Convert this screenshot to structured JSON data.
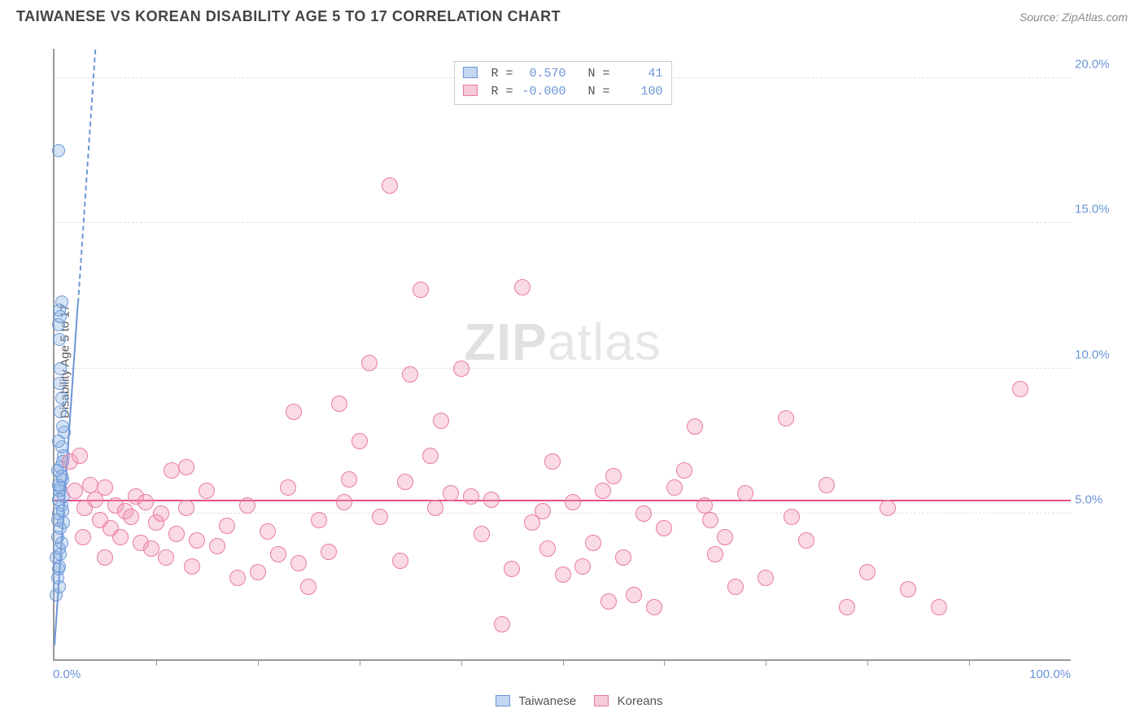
{
  "header": {
    "title": "TAIWANESE VS KOREAN DISABILITY AGE 5 TO 17 CORRELATION CHART",
    "source": "Source: ZipAtlas.com"
  },
  "chart": {
    "type": "scatter",
    "ylabel": "Disability Age 5 to 17",
    "xlim": [
      0,
      100
    ],
    "ylim": [
      0,
      21
    ],
    "x_ticks_minor": [
      10,
      20,
      30,
      40,
      50,
      60,
      70,
      80,
      90
    ],
    "x_tick_labels": [
      {
        "pos": 0,
        "text": "0.0%"
      },
      {
        "pos": 100,
        "text": "100.0%"
      }
    ],
    "y_grid": [
      {
        "y": 5,
        "label": "5.0%"
      },
      {
        "y": 10,
        "label": "10.0%"
      },
      {
        "y": 15,
        "label": "15.0%"
      },
      {
        "y": 20,
        "label": "20.0%"
      }
    ],
    "background_color": "#ffffff",
    "grid_color": "#dddddd",
    "axis_color": "#999999",
    "label_color": "#6b95d6",
    "watermark": "ZIPatlas",
    "series": [
      {
        "name": "Taiwanese",
        "fill": "rgba(135,175,225,0.35)",
        "stroke": "#6b95d6",
        "marker_radius": 8,
        "r_value": "0.570",
        "n_value": "41",
        "trend": {
          "x1": 0,
          "y1": 0.5,
          "x2": 4.0,
          "y2": 21,
          "color": "#6b95d6",
          "solid_until_x": 2.3
        },
        "points": [
          [
            0.2,
            2.2
          ],
          [
            0.3,
            2.8
          ],
          [
            0.4,
            3.1
          ],
          [
            0.2,
            3.5
          ],
          [
            0.5,
            3.8
          ],
          [
            0.3,
            4.2
          ],
          [
            0.6,
            4.5
          ],
          [
            0.4,
            5.0
          ],
          [
            0.7,
            5.3
          ],
          [
            0.5,
            5.8
          ],
          [
            0.8,
            6.2
          ],
          [
            0.6,
            6.6
          ],
          [
            0.9,
            7.0
          ],
          [
            0.7,
            7.3
          ],
          [
            1.0,
            7.8
          ],
          [
            0.8,
            8.0
          ],
          [
            0.5,
            9.5
          ],
          [
            0.6,
            10.0
          ],
          [
            0.4,
            11.5
          ],
          [
            0.5,
            12.0
          ],
          [
            0.7,
            12.3
          ],
          [
            0.3,
            4.8
          ],
          [
            0.4,
            5.5
          ],
          [
            0.6,
            5.9
          ],
          [
            0.8,
            6.8
          ],
          [
            0.5,
            3.2
          ],
          [
            0.7,
            4.0
          ],
          [
            0.9,
            4.7
          ],
          [
            0.3,
            6.5
          ],
          [
            0.4,
            7.5
          ],
          [
            0.6,
            3.6
          ],
          [
            0.5,
            2.5
          ],
          [
            0.8,
            5.1
          ],
          [
            0.9,
            5.6
          ],
          [
            0.4,
            6.0
          ],
          [
            0.6,
            8.5
          ],
          [
            0.7,
            9.0
          ],
          [
            0.5,
            11.0
          ],
          [
            0.6,
            11.8
          ],
          [
            0.4,
            17.5
          ],
          [
            0.7,
            6.3
          ]
        ]
      },
      {
        "name": "Koreans",
        "fill": "rgba(240,150,180,0.35)",
        "stroke": "#e87ba5",
        "marker_radius": 10,
        "r_value": "-0.000",
        "n_value": "100",
        "trend": {
          "x1": 0,
          "y1": 5.5,
          "x2": 100,
          "y2": 5.5,
          "color": "#e84b8a",
          "solid_until_x": 100
        },
        "points": [
          [
            1.5,
            6.8
          ],
          [
            2.0,
            5.8
          ],
          [
            2.5,
            7.0
          ],
          [
            3.0,
            5.2
          ],
          [
            3.5,
            6.0
          ],
          [
            4.0,
            5.5
          ],
          [
            4.5,
            4.8
          ],
          [
            5.0,
            5.9
          ],
          [
            5.5,
            4.5
          ],
          [
            6.0,
            5.3
          ],
          [
            6.5,
            4.2
          ],
          [
            7.0,
            5.1
          ],
          [
            7.5,
            4.9
          ],
          [
            8.0,
            5.6
          ],
          [
            8.5,
            4.0
          ],
          [
            9.0,
            5.4
          ],
          [
            9.5,
            3.8
          ],
          [
            10.0,
            4.7
          ],
          [
            10.5,
            5.0
          ],
          [
            11.0,
            3.5
          ],
          [
            11.5,
            6.5
          ],
          [
            12.0,
            4.3
          ],
          [
            13.0,
            5.2
          ],
          [
            13.5,
            3.2
          ],
          [
            14.0,
            4.1
          ],
          [
            15.0,
            5.8
          ],
          [
            16.0,
            3.9
          ],
          [
            17.0,
            4.6
          ],
          [
            18.0,
            2.8
          ],
          [
            19.0,
            5.3
          ],
          [
            20.0,
            3.0
          ],
          [
            21.0,
            4.4
          ],
          [
            22.0,
            3.6
          ],
          [
            23.0,
            5.9
          ],
          [
            24.0,
            3.3
          ],
          [
            25.0,
            2.5
          ],
          [
            26.0,
            4.8
          ],
          [
            27.0,
            3.7
          ],
          [
            28.0,
            8.8
          ],
          [
            29.0,
            6.2
          ],
          [
            30.0,
            7.5
          ],
          [
            31.0,
            10.2
          ],
          [
            32.0,
            4.9
          ],
          [
            33.0,
            16.3
          ],
          [
            34.0,
            3.4
          ],
          [
            35.0,
            9.8
          ],
          [
            36.0,
            12.7
          ],
          [
            37.0,
            7.0
          ],
          [
            38.0,
            8.2
          ],
          [
            39.0,
            5.7
          ],
          [
            40.0,
            10.0
          ],
          [
            41.0,
            5.6
          ],
          [
            42.0,
            4.3
          ],
          [
            43.0,
            5.5
          ],
          [
            44.0,
            1.2
          ],
          [
            45.0,
            3.1
          ],
          [
            46.0,
            12.8
          ],
          [
            47.0,
            4.7
          ],
          [
            48.0,
            5.1
          ],
          [
            49.0,
            6.8
          ],
          [
            50.0,
            2.9
          ],
          [
            51.0,
            5.4
          ],
          [
            52.0,
            3.2
          ],
          [
            53.0,
            4.0
          ],
          [
            54.0,
            5.8
          ],
          [
            55.0,
            6.3
          ],
          [
            56.0,
            3.5
          ],
          [
            57.0,
            2.2
          ],
          [
            58.0,
            5.0
          ],
          [
            59.0,
            1.8
          ],
          [
            60.0,
            4.5
          ],
          [
            61.0,
            5.9
          ],
          [
            62.0,
            6.5
          ],
          [
            63.0,
            8.0
          ],
          [
            64.0,
            5.3
          ],
          [
            65.0,
            3.6
          ],
          [
            66.0,
            4.2
          ],
          [
            67.0,
            2.5
          ],
          [
            68.0,
            5.7
          ],
          [
            70.0,
            2.8
          ],
          [
            72.0,
            8.3
          ],
          [
            74.0,
            4.1
          ],
          [
            76.0,
            6.0
          ],
          [
            78.0,
            1.8
          ],
          [
            80.0,
            3.0
          ],
          [
            82.0,
            5.2
          ],
          [
            84.0,
            2.4
          ],
          [
            72.5,
            4.9
          ],
          [
            64.5,
            4.8
          ],
          [
            54.5,
            2.0
          ],
          [
            48.5,
            3.8
          ],
          [
            37.5,
            5.2
          ],
          [
            34.5,
            6.1
          ],
          [
            28.5,
            5.4
          ],
          [
            23.5,
            8.5
          ],
          [
            13.0,
            6.6
          ],
          [
            5.0,
            3.5
          ],
          [
            2.8,
            4.2
          ],
          [
            95.0,
            9.3
          ],
          [
            87.0,
            1.8
          ]
        ]
      }
    ],
    "bottom_legend": [
      {
        "swatch_fill": "rgba(135,175,225,0.5)",
        "swatch_stroke": "#6b95d6",
        "label": "Taiwanese"
      },
      {
        "swatch_fill": "rgba(240,150,180,0.5)",
        "swatch_stroke": "#e87ba5",
        "label": "Koreans"
      }
    ]
  }
}
